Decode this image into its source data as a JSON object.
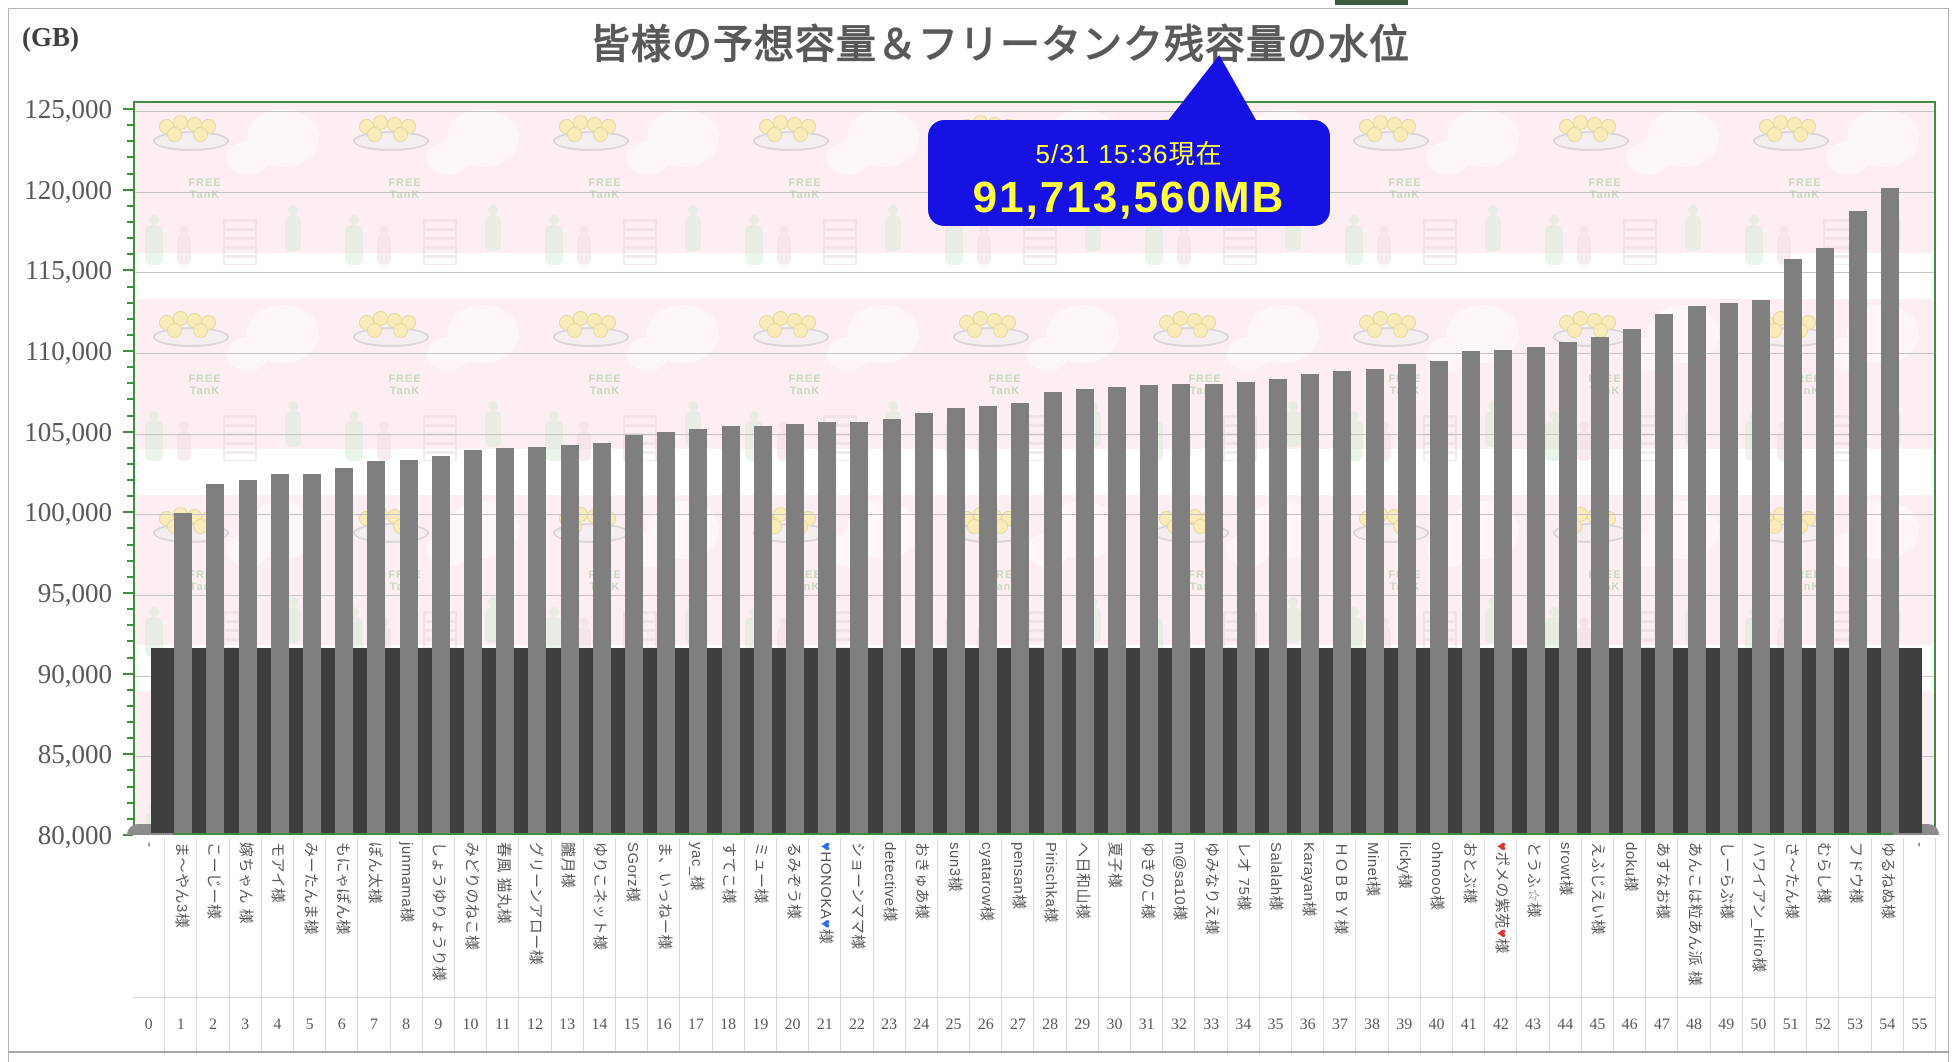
{
  "page": {
    "unit_label": "(GB)",
    "top_strip_color": "#3d5c3d"
  },
  "colors": {
    "frame_green": "#3f8e3f",
    "grid": "#c4c4c4",
    "bar": "#7f7f7f",
    "tank": "#3f3f3f",
    "callout_bg": "#1512e3",
    "callout_text": "#ffff3f",
    "axis_text": "#595959",
    "title_text": "#595959",
    "background_pink": "#fceef2",
    "freetank_green": "#9ccb9c"
  },
  "chart_data": {
    "type": "bar",
    "title": "皆様の予想容量＆フリータンク残容量の水位",
    "unit_label": "(GB)",
    "legend_position": "none",
    "grid": "horizontal",
    "y_axis": {
      "min": 80000,
      "max": 125500,
      "tick_step": 5000,
      "minor_tick_step": 1000,
      "tick_labels": [
        "125,000",
        "120,000",
        "115,000",
        "110,000",
        "105,000",
        "100,000",
        "95,000",
        "90,000",
        "85,000",
        "80,000"
      ]
    },
    "tank": {
      "label_line1": "5/31 15:36現在",
      "label_line2": "91,713,560MB",
      "level_gb": 91713.56
    },
    "background_tile_text": [
      "FREE",
      "TanK"
    ],
    "entries": [
      {
        "num": 0,
        "name": "-",
        "value": null
      },
      {
        "num": 1,
        "name": "ま～やん3様",
        "value": 100100
      },
      {
        "num": 2,
        "name": "こーじー様",
        "value": 101900
      },
      {
        "num": 3,
        "name": "嫁ちゃん 様",
        "value": 102100
      },
      {
        "num": 4,
        "name": "モアイ様",
        "value": 102500
      },
      {
        "num": 5,
        "name": "みーたんま様",
        "value": 102500
      },
      {
        "num": 6,
        "name": "もにゃぽん様",
        "value": 102900
      },
      {
        "num": 7,
        "name": "ぽん太様",
        "value": 103300
      },
      {
        "num": 8,
        "name": "junmama様",
        "value": 103400
      },
      {
        "num": 9,
        "name": "しょうゆりょうり様",
        "value": 103600
      },
      {
        "num": 10,
        "name": "みどりのねこ様",
        "value": 104000
      },
      {
        "num": 11,
        "name": "春風 猫丸様",
        "value": 104100
      },
      {
        "num": 12,
        "name": "グリーンアロー様",
        "value": 104200
      },
      {
        "num": 13,
        "name": "朧月様",
        "value": 104300
      },
      {
        "num": 14,
        "name": "ゆりこネット様",
        "value": 104400
      },
      {
        "num": 15,
        "name": "SGorz様",
        "value": 104900
      },
      {
        "num": 16,
        "name": "ま、いっねー様",
        "value": 105100
      },
      {
        "num": 17,
        "name": "yac_様",
        "value": 105300
      },
      {
        "num": 18,
        "name": "すてこ様",
        "value": 105500
      },
      {
        "num": 19,
        "name": "ミュー様",
        "value": 105500
      },
      {
        "num": 20,
        "name": "るみぞう様",
        "value": 105600
      },
      {
        "num": 21,
        "name": "♥HONOKA♥様",
        "value": 105700,
        "heart_color": "#2f6fe4"
      },
      {
        "num": 22,
        "name": "ショーンママ様",
        "value": 105700
      },
      {
        "num": 23,
        "name": "detective様",
        "value": 105900
      },
      {
        "num": 24,
        "name": "おきゅあ様",
        "value": 106300
      },
      {
        "num": 25,
        "name": "sun3様",
        "value": 106600
      },
      {
        "num": 26,
        "name": "cyatarow様",
        "value": 106700
      },
      {
        "num": 27,
        "name": "pensan様",
        "value": 106900
      },
      {
        "num": 28,
        "name": "Pirischka様",
        "value": 107600
      },
      {
        "num": 29,
        "name": "ヘ日和山様",
        "value": 107800
      },
      {
        "num": 30,
        "name": "夏子様",
        "value": 107900
      },
      {
        "num": 31,
        "name": "ゆきのこ様",
        "value": 108000
      },
      {
        "num": 32,
        "name": "m@sa10様",
        "value": 108100
      },
      {
        "num": 33,
        "name": "ゆみなりえ様",
        "value": 108100
      },
      {
        "num": 34,
        "name": "レオ 75様",
        "value": 108200
      },
      {
        "num": 35,
        "name": "Salalah様",
        "value": 108400
      },
      {
        "num": 36,
        "name": "Karayan様",
        "value": 108700
      },
      {
        "num": 37,
        "name": "ＨＯＢＢＹ様",
        "value": 108900
      },
      {
        "num": 38,
        "name": "Minet様",
        "value": 109000
      },
      {
        "num": 39,
        "name": "licky様",
        "value": 109300
      },
      {
        "num": 40,
        "name": "ohnooo様",
        "value": 109500
      },
      {
        "num": 41,
        "name": "おとぶ様",
        "value": 110100
      },
      {
        "num": 42,
        "name": "♥ポメの紫苑♥様",
        "value": 110200,
        "heart_color": "#e03131"
      },
      {
        "num": 43,
        "name": "とうふ☆様",
        "value": 110400
      },
      {
        "num": 44,
        "name": "srowt様",
        "value": 110700
      },
      {
        "num": 45,
        "name": "えふじえい様",
        "value": 111000
      },
      {
        "num": 46,
        "name": "doku様",
        "value": 111500
      },
      {
        "num": 47,
        "name": "あすなお様",
        "value": 112400
      },
      {
        "num": 48,
        "name": "あんこは粒あん派 様",
        "value": 112900
      },
      {
        "num": 49,
        "name": "しーらぶ様",
        "value": 113100
      },
      {
        "num": 50,
        "name": "ハワイアン_Hiro様",
        "value": 113300
      },
      {
        "num": 51,
        "name": "さ～たん様",
        "value": 115800
      },
      {
        "num": 52,
        "name": "むらし様",
        "value": 116500
      },
      {
        "num": 53,
        "name": "フドウ様",
        "value": 118800
      },
      {
        "num": 54,
        "name": "ゆるねぬ様",
        "value": 120200
      },
      {
        "num": 55,
        "name": "-",
        "value": null
      }
    ]
  }
}
